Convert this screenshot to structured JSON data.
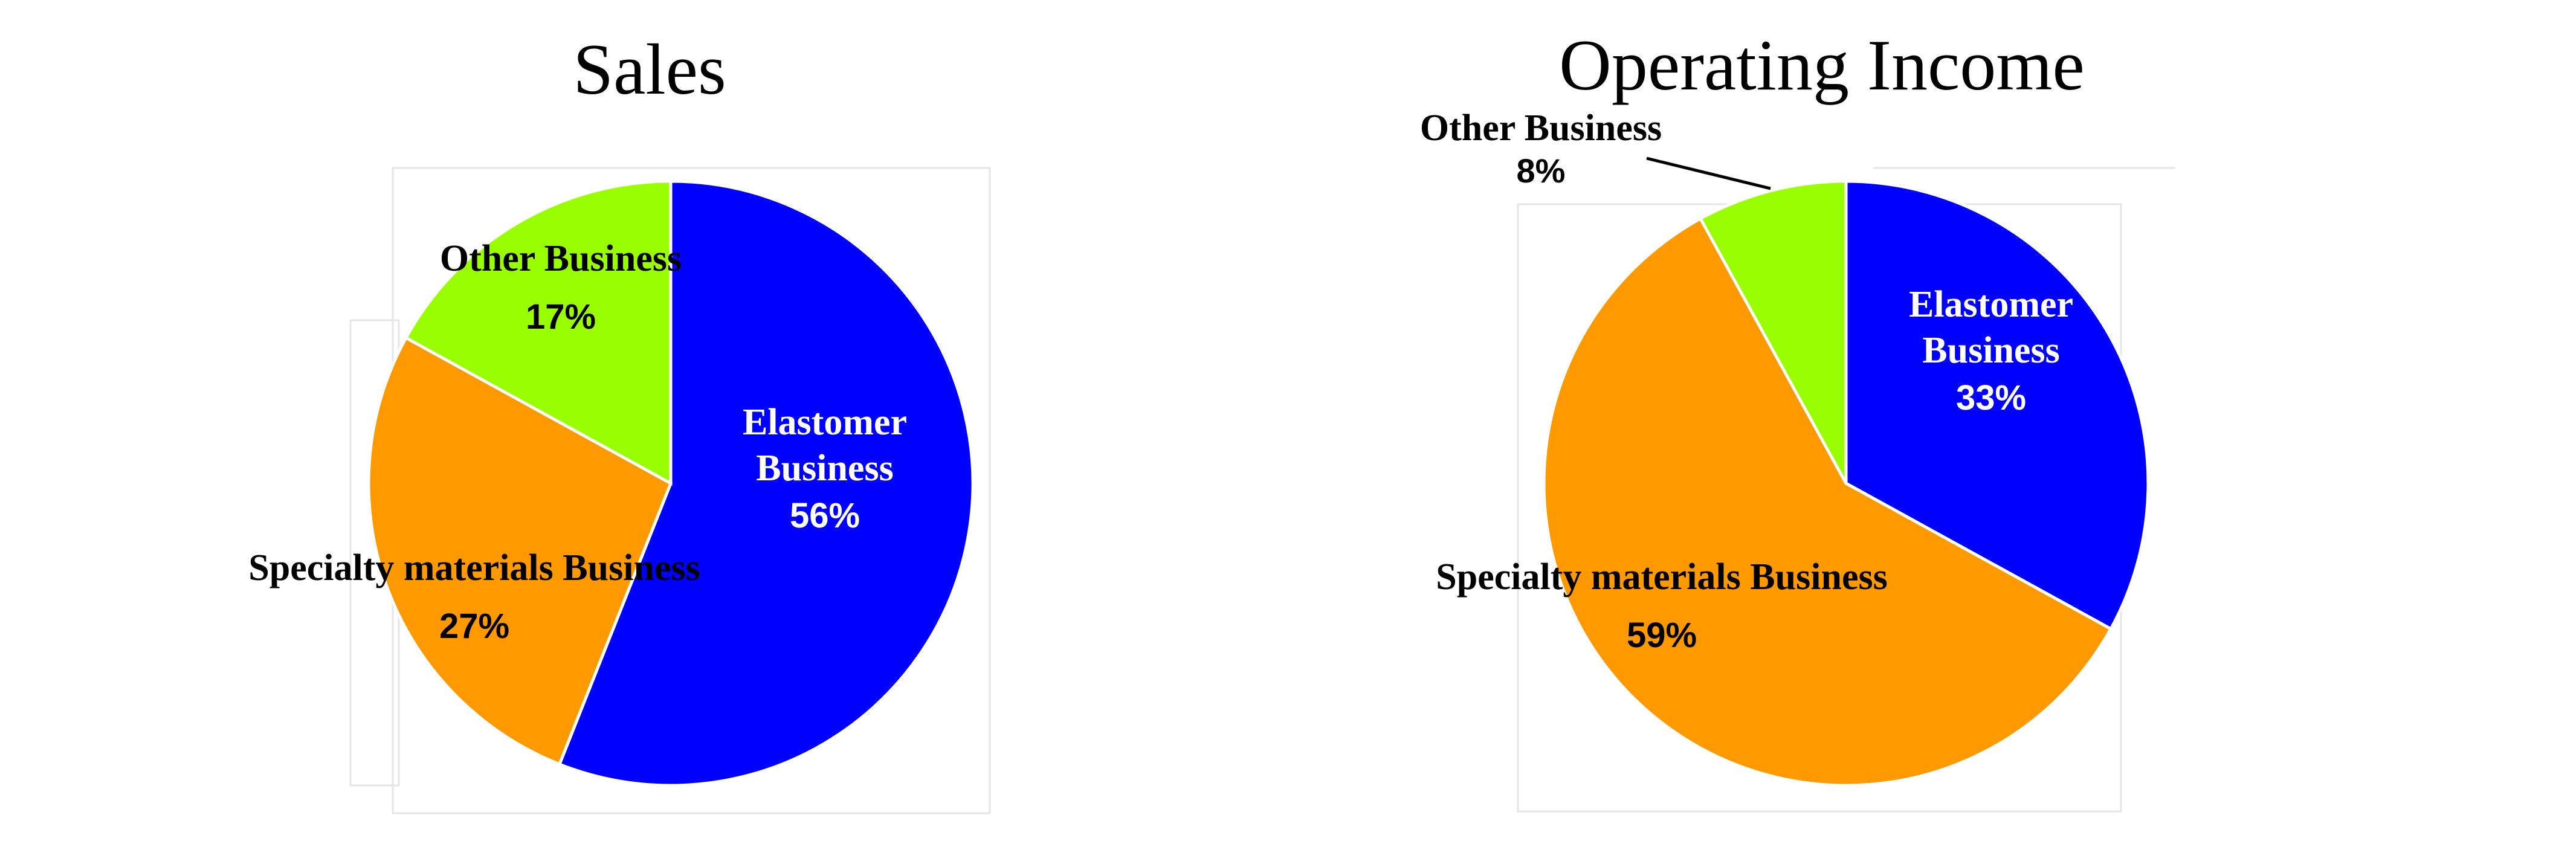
{
  "chart_data": [
    {
      "type": "pie",
      "title": "Sales",
      "slices": [
        {
          "label": "Elastomer Business",
          "label_lines": [
            "Elastomer",
            "Business"
          ],
          "percent_label": "56%",
          "value": 56,
          "color": "#0000ff",
          "label_color": "#ffffff"
        },
        {
          "label": "Specialty materials Business",
          "label_lines": [
            "Specialty materials Business"
          ],
          "percent_label": "27%",
          "value": 27,
          "color": "#ff9900",
          "label_color": "#000000"
        },
        {
          "label": "Other Business",
          "label_lines": [
            "Other Business"
          ],
          "percent_label": "17%",
          "value": 17,
          "color": "#99ff00",
          "label_color": "#000000"
        }
      ]
    },
    {
      "type": "pie",
      "title": "Operating Income",
      "slices": [
        {
          "label": "Elastomer Business",
          "label_lines": [
            "Elastomer",
            "Business"
          ],
          "percent_label": "33%",
          "value": 33,
          "color": "#0000ff",
          "label_color": "#ffffff"
        },
        {
          "label": "Specialty materials Business",
          "label_lines": [
            "Specialty materials Business"
          ],
          "percent_label": "59%",
          "value": 59,
          "color": "#ff9900",
          "label_color": "#000000"
        },
        {
          "label": "Other Business",
          "label_lines": [
            "Other Business"
          ],
          "percent_label": "8%",
          "value": 8,
          "color": "#99ff00",
          "label_color": "#000000"
        }
      ]
    }
  ]
}
